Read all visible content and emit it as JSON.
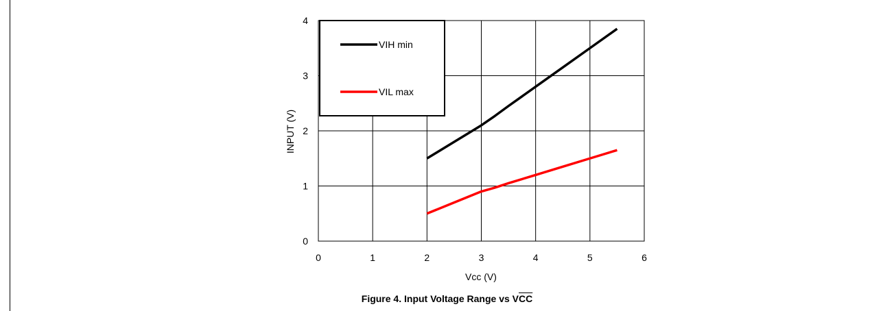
{
  "chart_data": {
    "type": "line",
    "xlabel": "Vcc (V)",
    "ylabel": "INPUT  (V)",
    "xlim": [
      0,
      6
    ],
    "ylim": [
      0,
      4
    ],
    "xticks": [
      "0",
      "1",
      "2",
      "3",
      "4",
      "5",
      "6"
    ],
    "yticks": [
      "0",
      "1",
      "2",
      "3",
      "4"
    ],
    "grid": true,
    "legend_position": "top-left",
    "series": [
      {
        "name": "VIH min",
        "color": "#000000",
        "x": [
          2,
          2.5,
          3,
          3.25,
          3.5,
          4,
          4.5,
          5,
          5.5
        ],
        "y": [
          1.5,
          1.8,
          2.1,
          2.27,
          2.45,
          2.8,
          3.15,
          3.5,
          3.85
        ]
      },
      {
        "name": "VIL max",
        "color": "#ff0000",
        "x": [
          2,
          2.5,
          3,
          3.25,
          3.5,
          4,
          4.5,
          5,
          5.5
        ],
        "y": [
          0.5,
          0.7,
          0.9,
          0.97,
          1.05,
          1.2,
          1.35,
          1.5,
          1.65
        ]
      }
    ]
  },
  "caption": {
    "prefix": "Figure 4. Input Voltage Range vs V",
    "overlined": "CC"
  }
}
